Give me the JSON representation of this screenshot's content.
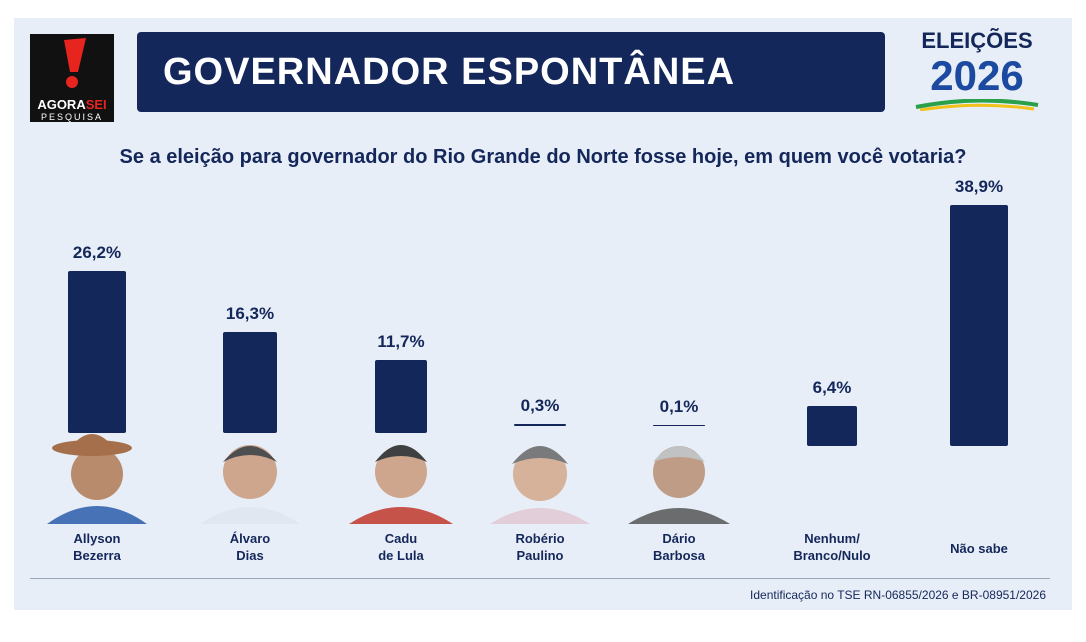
{
  "header": {
    "logo_a": "AGORA",
    "logo_b": "SEI",
    "logo_sub": "PESQUISA",
    "badge_top": "ELEIÇÕES",
    "badge_year": "2026"
  },
  "chart_data": {
    "type": "bar",
    "title": "GOVERNADOR ESPONTÂNEA",
    "subtitle": "Se a eleição para governador do Rio Grande do Norte fosse hoje, em quem você votaria?",
    "categories": [
      "Allyson\nBezerra",
      "Álvaro\nDias",
      "Cadu\nde Lula",
      "Robério\nPaulino",
      "Dário\nBarbosa",
      "Nenhum/\nBranco/Nulo",
      "Não sabe"
    ],
    "values": [
      26.2,
      16.3,
      11.7,
      0.3,
      0.1,
      6.4,
      38.9
    ],
    "value_labels": [
      "26,2%",
      "16,3%",
      "11,7%",
      "0,3%",
      "0,1%",
      "6,4%",
      "38,9%"
    ],
    "color": "#14275a",
    "note": "Identificação no TSE RN-06855/2026 e BR-08951/2026"
  }
}
